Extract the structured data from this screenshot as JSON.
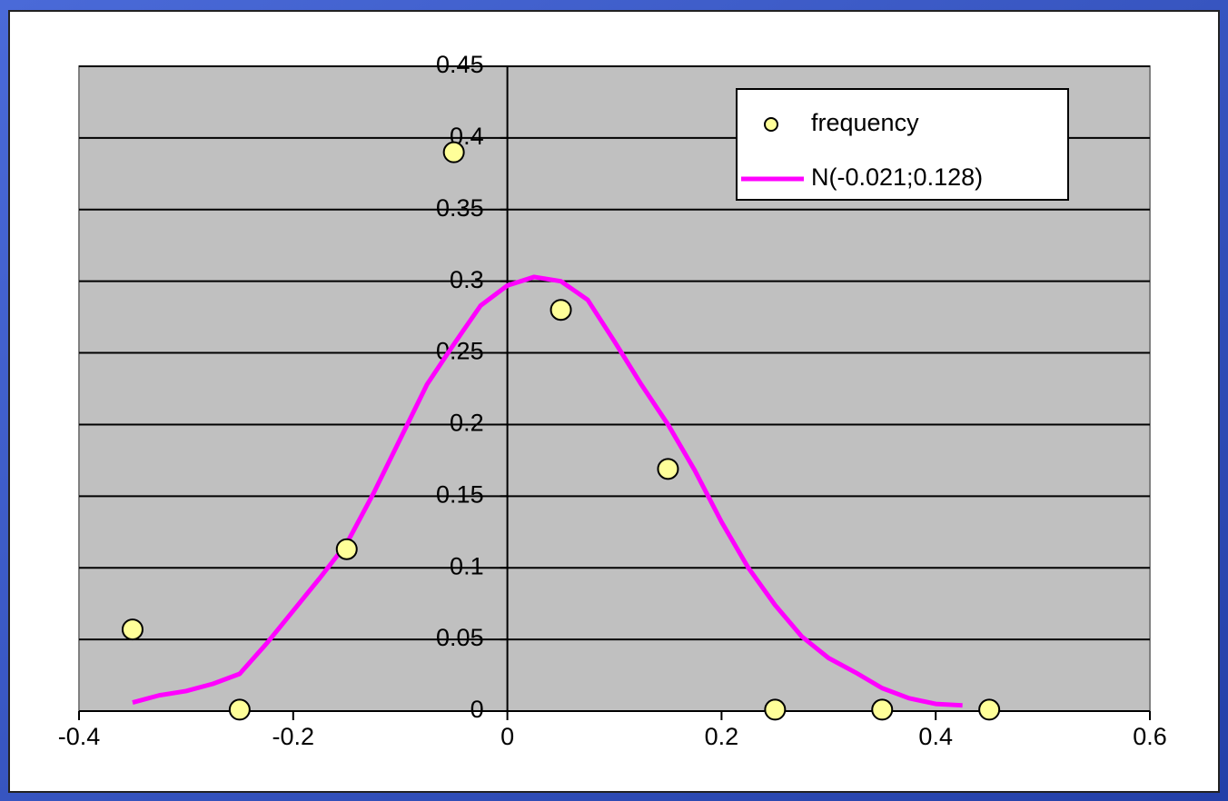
{
  "chart_data": {
    "type": "scatter",
    "series": [
      {
        "name": "frequency",
        "type": "scatter",
        "color": "#ffff99",
        "x": [
          -0.35,
          -0.25,
          -0.15,
          -0.05,
          0.05,
          0.15,
          0.25,
          0.35,
          0.45
        ],
        "values": [
          0.057,
          0.001,
          0.113,
          0.39,
          0.28,
          0.169,
          0.001,
          0.001,
          0.001
        ]
      },
      {
        "name": "N(-0.021;0.128)",
        "type": "line",
        "color": "#ff00ff",
        "x": [
          -0.35,
          -0.325,
          -0.3,
          -0.275,
          -0.25,
          -0.225,
          -0.2,
          -0.175,
          -0.15,
          -0.125,
          -0.1,
          -0.075,
          -0.05,
          -0.025,
          0,
          0.025,
          0.05,
          0.075,
          0.1,
          0.125,
          0.15,
          0.175,
          0.2,
          0.225,
          0.25,
          0.275,
          0.3,
          0.325,
          0.35,
          0.375,
          0.4,
          0.425
        ],
        "values": [
          0.006,
          0.011,
          0.014,
          0.019,
          0.026,
          0.047,
          0.07,
          0.093,
          0.117,
          0.152,
          0.19,
          0.228,
          0.256,
          0.283,
          0.297,
          0.303,
          0.3,
          0.287,
          0.258,
          0.228,
          0.2,
          0.168,
          0.132,
          0.1,
          0.074,
          0.052,
          0.037,
          0.027,
          0.016,
          0.009,
          0.005,
          0.004
        ]
      }
    ],
    "xlim": [
      -0.4,
      0.6
    ],
    "xticks": [
      -0.4,
      -0.2,
      0,
      0.2,
      0.4,
      0.6
    ],
    "ylim": [
      0,
      0.45
    ],
    "yticks": [
      0,
      0.05,
      0.1,
      0.15,
      0.2,
      0.25,
      0.3,
      0.35,
      0.4,
      0.45
    ],
    "grid": true,
    "legend": "top-right"
  }
}
